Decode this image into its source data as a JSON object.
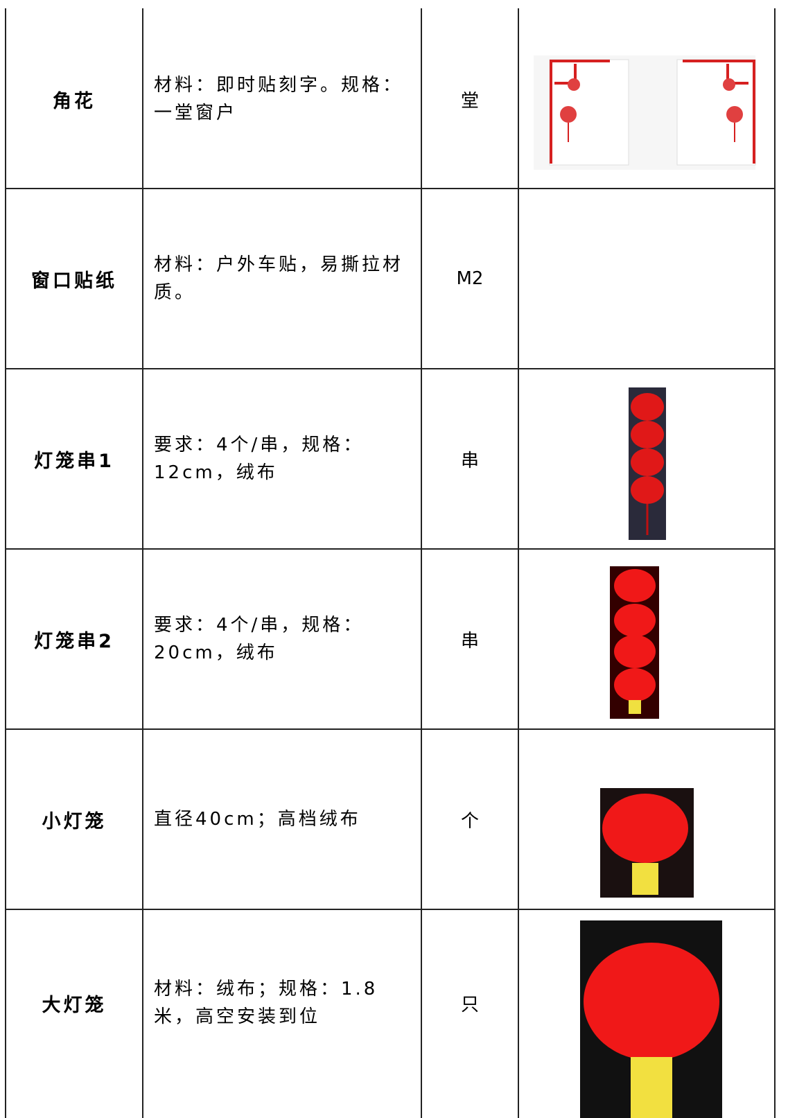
{
  "table": {
    "rows": [
      [
        "角花",
        "材料：即时贴刻字。规格：一堂窗户",
        "堂"
      ],
      [
        "窗口贴纸",
        "材料：户外车贴，易撕拉材质。",
        "M2"
      ],
      [
        "灯笼串1",
        "要求：4个/串，规格：12cm，绒布",
        "串"
      ],
      [
        "灯笼串2",
        "要求：4个/串，规格：20cm，绒布",
        "串"
      ],
      [
        "小灯笼",
        "直径40cm；高档绒布",
        "个"
      ],
      [
        "大灯笼",
        "材料：绒布；规格：1.8米，高空安装到位",
        "只"
      ]
    ]
  }
}
